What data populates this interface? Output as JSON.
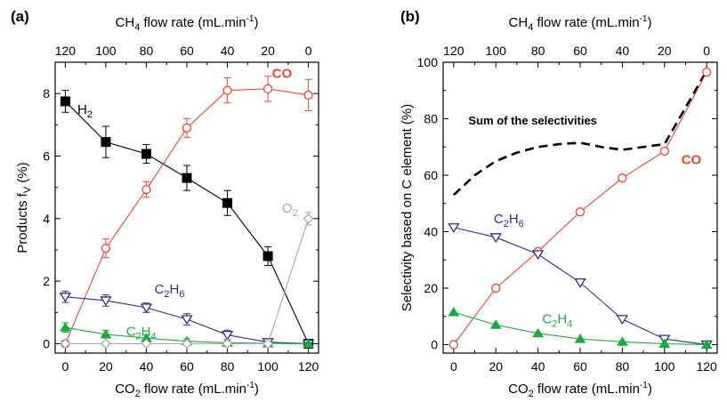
{
  "chart_data": [
    {
      "panel": "(a)",
      "type": "line",
      "xlabel": {
        "base": "CO",
        "sub": "2",
        "rest": " flow rate (mL.min",
        "sup": "-1",
        "end": ")"
      },
      "x2label": {
        "base": "CH",
        "sub": "4",
        "rest": " flow rate (mL.min",
        "sup": "-1",
        "end": ")"
      },
      "ylabel": {
        "base": "Products f",
        "sub": "V",
        "rest": " (%)"
      },
      "x": [
        0,
        20,
        40,
        60,
        80,
        100,
        120
      ],
      "x_ticks": [
        "0",
        "20",
        "40",
        "60",
        "80",
        "100",
        "120"
      ],
      "x2_ticks": [
        "120",
        "100",
        "80",
        "60",
        "40",
        "20",
        "0"
      ],
      "y_ticks": [
        "0",
        "2",
        "4",
        "6",
        "8"
      ],
      "xlim": [
        -5,
        125
      ],
      "ylim": [
        -0.3,
        9.0
      ],
      "series": [
        {
          "name": "H2",
          "label": {
            "main": "H",
            "sub": "2"
          },
          "color": "#000000",
          "marker": "square-filled",
          "values": [
            7.75,
            6.45,
            6.07,
            5.3,
            4.5,
            2.8,
            0.0
          ],
          "errors": [
            0.35,
            0.5,
            0.3,
            0.4,
            0.4,
            0.3,
            0.0
          ]
        },
        {
          "name": "CO",
          "label": {
            "main": "CO",
            "sub": ""
          },
          "color": "#f0432e",
          "marker": "circle-open",
          "values": [
            0.0,
            3.05,
            4.93,
            6.9,
            8.1,
            8.15,
            7.95
          ],
          "errors": [
            0.0,
            0.3,
            0.25,
            0.3,
            0.4,
            0.4,
            0.5
          ]
        },
        {
          "name": "C2H6",
          "label": {
            "main": "C",
            "sub": "2",
            "main2": "H",
            "sub2": "6"
          },
          "color": "#2b2f8f",
          "marker": "triangle-down-open",
          "values": [
            1.5,
            1.38,
            1.15,
            0.78,
            0.28,
            0.05,
            0.0
          ],
          "errors": [
            0.18,
            0.18,
            0.15,
            0.18,
            0.15,
            0.05,
            0.0
          ]
        },
        {
          "name": "C2H4",
          "label": {
            "main": "C",
            "sub": "2",
            "main2": "H",
            "sub2": "4"
          },
          "color": "#1aaa3c",
          "marker": "triangle-up-filled",
          "values": [
            0.52,
            0.3,
            0.18,
            0.08,
            0.03,
            0.01,
            0.0
          ],
          "errors": [
            0.15,
            0.12,
            0.1,
            0.08,
            0.05,
            0.03,
            0.0
          ]
        },
        {
          "name": "O2",
          "label": {
            "main": "O",
            "sub": "2"
          },
          "color": "#a9a9a9",
          "marker": "diamond-open",
          "values": [
            0.0,
            0.0,
            0.0,
            0.0,
            0.0,
            0.0,
            4.0
          ],
          "errors": [
            0.0,
            0.0,
            0.0,
            0.0,
            0.0,
            0.0,
            0.2
          ]
        }
      ]
    },
    {
      "panel": "(b)",
      "type": "line",
      "xlabel": {
        "base": "CO",
        "sub": "2",
        "rest": " flow rate (mL.min",
        "sup": "-1",
        "end": ")"
      },
      "x2label": {
        "base": "CH",
        "sub": "4",
        "rest": " flow rate (mL.min",
        "sup": "-1",
        "end": ")"
      },
      "ylabel": {
        "base": "Selectivity based on C element (%)",
        "sub": "",
        "rest": ""
      },
      "x": [
        0,
        20,
        40,
        60,
        80,
        100,
        120
      ],
      "x_ticks": [
        "0",
        "20",
        "40",
        "60",
        "80",
        "100",
        "120"
      ],
      "x2_ticks": [
        "120",
        "100",
        "80",
        "60",
        "40",
        "20",
        "0"
      ],
      "y_ticks": [
        "0",
        "20",
        "40",
        "60",
        "80",
        "100"
      ],
      "xlim": [
        -5,
        125
      ],
      "ylim": [
        -3,
        100
      ],
      "series": [
        {
          "name": "CO",
          "label": {
            "main": "CO",
            "sub": ""
          },
          "color": "#f0432e",
          "marker": "circle-open",
          "values": [
            0,
            20,
            33,
            47,
            59,
            68.5,
            96.5
          ]
        },
        {
          "name": "C2H6",
          "label": {
            "main": "C",
            "sub": "2",
            "main2": "H",
            "sub2": "6"
          },
          "color": "#2b2f8f",
          "marker": "triangle-down-open",
          "values": [
            41.5,
            38,
            32,
            22,
            9,
            2,
            0
          ]
        },
        {
          "name": "C2H4",
          "label": {
            "main": "C",
            "sub": "2",
            "main2": "H",
            "sub2": "4"
          },
          "color": "#1aaa3c",
          "marker": "triangle-up-filled",
          "values": [
            11.5,
            7,
            4,
            2,
            1,
            0.3,
            0
          ]
        }
      ],
      "sum_curve": {
        "label": "Sum of the selectivities",
        "color": "#000000",
        "x": [
          0,
          10,
          20,
          30,
          40,
          50,
          60,
          70,
          80,
          90,
          100,
          110,
          120
        ],
        "y": [
          53,
          60,
          65,
          68,
          70,
          71,
          71.5,
          70,
          69,
          70,
          71,
          84,
          97
        ]
      }
    }
  ]
}
